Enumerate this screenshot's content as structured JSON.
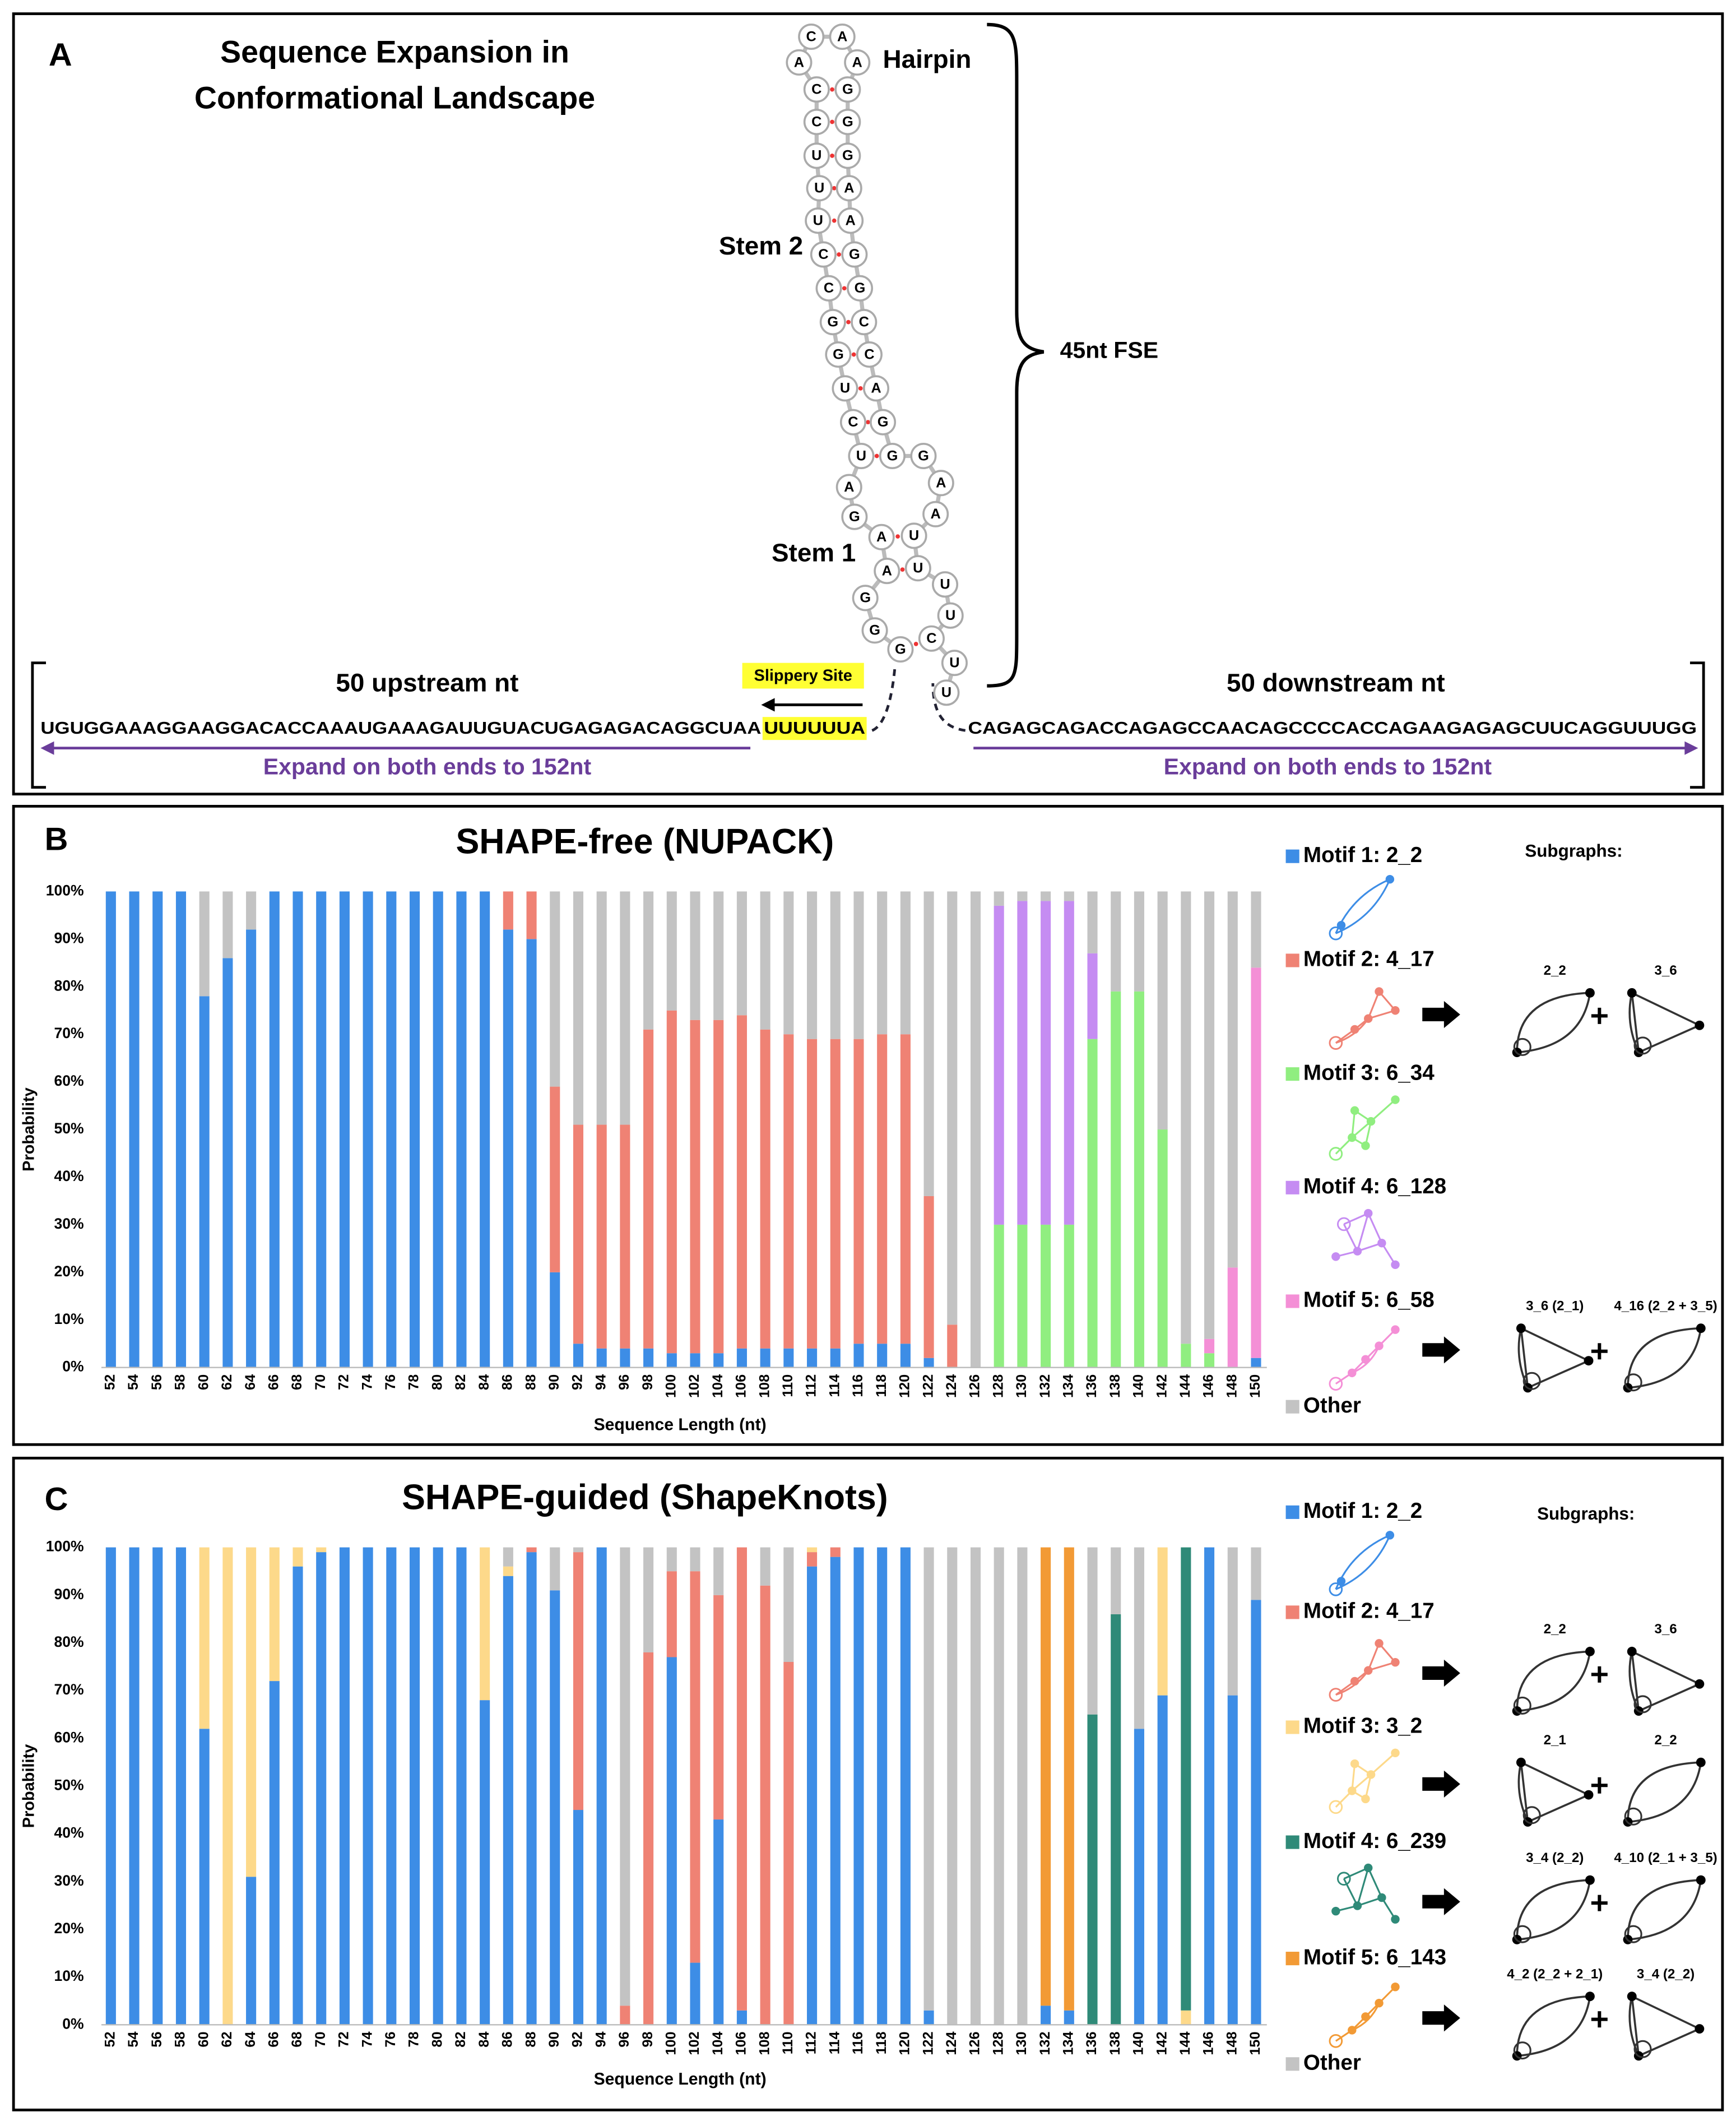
{
  "panel_a": {
    "label": "A",
    "title": [
      "Sequence Expansion in",
      "Conformational Landscape"
    ],
    "hairpin": "Hairpin",
    "stem2": "Stem 2",
    "stem1": "Stem 1",
    "fse": "45nt FSE",
    "upstream_label": "50 upstream nt",
    "downstream_label": "50 downstream nt",
    "slippery_site": "Slippery Site",
    "upstream_sequence": "UGUGGAAAGGAAGGACACCAAAUGAAAGAUUGUACUGAGAGACAGGCUAA",
    "slippery_sequence": "UUUUUUA",
    "downstream_sequence": "CAGAGCAGACCAGAGCCAACAGCCCCACCAGAAGAGAGCUUCAGGUUUGG",
    "expand_left": "Expand on both ends to 152nt",
    "expand_right": "Expand on both ends to 152nt",
    "nucleotides": [
      "G",
      "G",
      "G",
      "A",
      "A",
      "G",
      "A",
      "U",
      "C",
      "U",
      "G",
      "G",
      "C",
      "C",
      "U",
      "U",
      "U",
      "C",
      "C",
      "A",
      "C",
      "A",
      "A",
      "G",
      "G",
      "G",
      "A",
      "A",
      "G",
      "G",
      "C",
      "C",
      "A",
      "G",
      "G",
      "G",
      "A",
      "A",
      "U",
      "U",
      "U",
      "U",
      "C",
      "U",
      "U"
    ]
  },
  "chart_data": [
    {
      "type": "bar",
      "stacked": true,
      "panel": "B",
      "title": "SHAPE-free (NUPACK)",
      "ylabel": "Probability",
      "xlabel": "Sequence Length (nt)",
      "categories": [
        52,
        54,
        56,
        58,
        60,
        62,
        64,
        66,
        68,
        70,
        72,
        74,
        76,
        78,
        80,
        82,
        84,
        86,
        88,
        90,
        92,
        94,
        96,
        98,
        100,
        102,
        104,
        106,
        108,
        110,
        112,
        114,
        116,
        118,
        120,
        122,
        124,
        126,
        128,
        130,
        132,
        134,
        136,
        138,
        140,
        142,
        144,
        146,
        148,
        150
      ],
      "ylim": [
        0,
        100
      ],
      "yticks": [
        {
          "value": 0,
          "label": "0%"
        },
        {
          "value": 10,
          "label": "10%"
        },
        {
          "value": 20,
          "label": "20%"
        },
        {
          "value": 30,
          "label": "30%"
        },
        {
          "value": 40,
          "label": "40%"
        },
        {
          "value": 50,
          "label": "50%"
        },
        {
          "value": 60,
          "label": "60%"
        },
        {
          "value": 70,
          "label": "70%"
        },
        {
          "value": 80,
          "label": "80%"
        },
        {
          "value": 90,
          "label": "90%"
        },
        {
          "value": 100,
          "label": "100%"
        }
      ],
      "series": [
        {
          "name": "Motif 1: 2_2",
          "color": "#3d8de6",
          "values": [
            100,
            100,
            100,
            100,
            78,
            86,
            92,
            100,
            100,
            100,
            100,
            100,
            100,
            100,
            100,
            100,
            100,
            92,
            90,
            20,
            5,
            4,
            4,
            4,
            3,
            3,
            3,
            4,
            4,
            4,
            4,
            4,
            5,
            5,
            5,
            2,
            0,
            0,
            0,
            0,
            0,
            0,
            0,
            0,
            0,
            0,
            0,
            0,
            0,
            2
          ]
        },
        {
          "name": "Motif 2: 4_17",
          "color": "#ef8274",
          "values": [
            0,
            0,
            0,
            0,
            0,
            0,
            0,
            0,
            0,
            0,
            0,
            0,
            0,
            0,
            0,
            0,
            0,
            8,
            10,
            39,
            46,
            47,
            47,
            67,
            72,
            70,
            70,
            70,
            67,
            66,
            65,
            65,
            64,
            65,
            65,
            34,
            9,
            0,
            0,
            0,
            0,
            0,
            0,
            0,
            0,
            0,
            0,
            0,
            0,
            0
          ]
        },
        {
          "name": "Motif 3: 6_34",
          "color": "#90ee80",
          "values": [
            0,
            0,
            0,
            0,
            0,
            0,
            0,
            0,
            0,
            0,
            0,
            0,
            0,
            0,
            0,
            0,
            0,
            0,
            0,
            0,
            0,
            0,
            0,
            0,
            0,
            0,
            0,
            0,
            0,
            0,
            0,
            0,
            0,
            0,
            0,
            0,
            0,
            0,
            30,
            30,
            30,
            30,
            69,
            79,
            79,
            50,
            5,
            3,
            0,
            0
          ]
        },
        {
          "name": "Motif 4: 6_128",
          "color": "#c58cf2",
          "values": [
            0,
            0,
            0,
            0,
            0,
            0,
            0,
            0,
            0,
            0,
            0,
            0,
            0,
            0,
            0,
            0,
            0,
            0,
            0,
            0,
            0,
            0,
            0,
            0,
            0,
            0,
            0,
            0,
            0,
            0,
            0,
            0,
            0,
            0,
            0,
            0,
            0,
            0,
            67,
            68,
            68,
            68,
            18,
            0,
            0,
            0,
            0,
            0,
            0,
            0
          ]
        },
        {
          "name": "Motif 5: 6_58",
          "color": "#f48fd6",
          "values": [
            0,
            0,
            0,
            0,
            0,
            0,
            0,
            0,
            0,
            0,
            0,
            0,
            0,
            0,
            0,
            0,
            0,
            0,
            0,
            0,
            0,
            0,
            0,
            0,
            0,
            0,
            0,
            0,
            0,
            0,
            0,
            0,
            0,
            0,
            0,
            0,
            0,
            0,
            0,
            0,
            0,
            0,
            0,
            0,
            0,
            0,
            0,
            3,
            21,
            82
          ]
        },
        {
          "name": "Other",
          "color": "#c3c3c3",
          "values": [
            0,
            0,
            0,
            0,
            22,
            14,
            8,
            0,
            0,
            0,
            0,
            0,
            0,
            0,
            0,
            0,
            0,
            0,
            0,
            41,
            49,
            49,
            49,
            29,
            25,
            27,
            27,
            26,
            29,
            30,
            31,
            31,
            31,
            30,
            30,
            64,
            91,
            100,
            3,
            2,
            2,
            2,
            13,
            21,
            21,
            50,
            95,
            94,
            79,
            16
          ]
        }
      ],
      "subgraph_heading": "Subgraphs:",
      "subgraph_labels": [
        [
          "2_2",
          "3_6"
        ],
        [
          "3_6 (2_1)",
          "4_16 (2_2 + 3_5)"
        ]
      ]
    },
    {
      "type": "bar",
      "stacked": true,
      "panel": "C",
      "title": "SHAPE-guided (ShapeKnots)",
      "ylabel": "Probability",
      "xlabel": "Sequence Length (nt)",
      "categories": [
        52,
        54,
        56,
        58,
        60,
        62,
        64,
        66,
        68,
        70,
        72,
        74,
        76,
        78,
        80,
        82,
        84,
        86,
        88,
        90,
        92,
        94,
        96,
        98,
        100,
        102,
        104,
        106,
        108,
        110,
        112,
        114,
        116,
        118,
        120,
        122,
        124,
        126,
        128,
        130,
        132,
        134,
        136,
        138,
        140,
        142,
        144,
        146,
        148,
        150
      ],
      "ylim": [
        0,
        100
      ],
      "yticks": [
        {
          "value": 0,
          "label": "0%"
        },
        {
          "value": 10,
          "label": "10%"
        },
        {
          "value": 20,
          "label": "20%"
        },
        {
          "value": 30,
          "label": "30%"
        },
        {
          "value": 40,
          "label": "40%"
        },
        {
          "value": 50,
          "label": "50%"
        },
        {
          "value": 60,
          "label": "60%"
        },
        {
          "value": 70,
          "label": "70%"
        },
        {
          "value": 80,
          "label": "80%"
        },
        {
          "value": 90,
          "label": "90%"
        },
        {
          "value": 100,
          "label": "100%"
        }
      ],
      "series": [
        {
          "name": "Motif 1: 2_2",
          "color": "#3d8de6",
          "values": [
            100,
            100,
            100,
            100,
            62,
            0,
            31,
            72,
            96,
            99,
            100,
            100,
            100,
            100,
            100,
            100,
            68,
            94,
            99,
            91,
            45,
            100,
            0,
            0,
            77,
            13,
            43,
            3,
            0,
            0,
            96,
            98,
            100,
            100,
            100,
            3,
            0,
            0,
            0,
            0,
            4,
            3,
            0,
            0,
            62,
            69,
            0,
            100,
            69,
            89
          ]
        },
        {
          "name": "Motif 2: 4_17",
          "color": "#ef8274",
          "values": [
            0,
            0,
            0,
            0,
            0,
            0,
            0,
            0,
            0,
            0,
            0,
            0,
            0,
            0,
            0,
            0,
            0,
            0,
            1,
            0,
            54,
            0,
            4,
            78,
            18,
            82,
            47,
            97,
            92,
            76,
            3,
            2,
            0,
            0,
            0,
            0,
            0,
            0,
            0,
            0,
            0,
            0,
            0,
            0,
            0,
            0,
            0,
            0,
            0,
            0
          ]
        },
        {
          "name": "Motif 3: 3_2",
          "color": "#fdd98a",
          "values": [
            0,
            0,
            0,
            0,
            38,
            100,
            69,
            28,
            4,
            1,
            0,
            0,
            0,
            0,
            0,
            0,
            32,
            2,
            0,
            0,
            0,
            0,
            0,
            0,
            0,
            0,
            0,
            0,
            0,
            0,
            1,
            0,
            0,
            0,
            0,
            0,
            0,
            0,
            0,
            0,
            0,
            0,
            0,
            0,
            0,
            31,
            3,
            0,
            0,
            0
          ]
        },
        {
          "name": "Motif 4: 6_239",
          "color": "#2f8a78",
          "values": [
            0,
            0,
            0,
            0,
            0,
            0,
            0,
            0,
            0,
            0,
            0,
            0,
            0,
            0,
            0,
            0,
            0,
            0,
            0,
            0,
            0,
            0,
            0,
            0,
            0,
            0,
            0,
            0,
            0,
            0,
            0,
            0,
            0,
            0,
            0,
            0,
            0,
            0,
            0,
            0,
            0,
            0,
            65,
            86,
            0,
            0,
            97,
            0,
            0,
            0
          ]
        },
        {
          "name": "Motif 5: 6_143",
          "color": "#f29a35",
          "values": [
            0,
            0,
            0,
            0,
            0,
            0,
            0,
            0,
            0,
            0,
            0,
            0,
            0,
            0,
            0,
            0,
            0,
            0,
            0,
            0,
            0,
            0,
            0,
            0,
            0,
            0,
            0,
            0,
            0,
            0,
            0,
            0,
            0,
            0,
            0,
            0,
            0,
            0,
            0,
            0,
            96,
            97,
            0,
            0,
            0,
            0,
            0,
            0,
            0,
            0
          ]
        },
        {
          "name": "Other",
          "color": "#c3c3c3",
          "values": [
            0,
            0,
            0,
            0,
            0,
            0,
            0,
            0,
            0,
            0,
            0,
            0,
            0,
            0,
            0,
            0,
            0,
            4,
            0,
            9,
            1,
            0,
            96,
            22,
            5,
            5,
            10,
            0,
            8,
            24,
            0,
            0,
            0,
            0,
            0,
            97,
            100,
            100,
            100,
            100,
            0,
            0,
            35,
            14,
            38,
            0,
            0,
            0,
            31,
            11
          ]
        }
      ],
      "subgraph_heading": "Subgraphs:",
      "subgraph_labels": [
        [
          "2_2",
          "3_6"
        ],
        [
          "2_1",
          "2_2"
        ],
        [
          "3_4 (2_2)",
          "4_10 (2_1 + 3_5)"
        ],
        [
          "4_2 (2_2 + 2_1)",
          "3_4 (2_2)"
        ]
      ]
    }
  ]
}
